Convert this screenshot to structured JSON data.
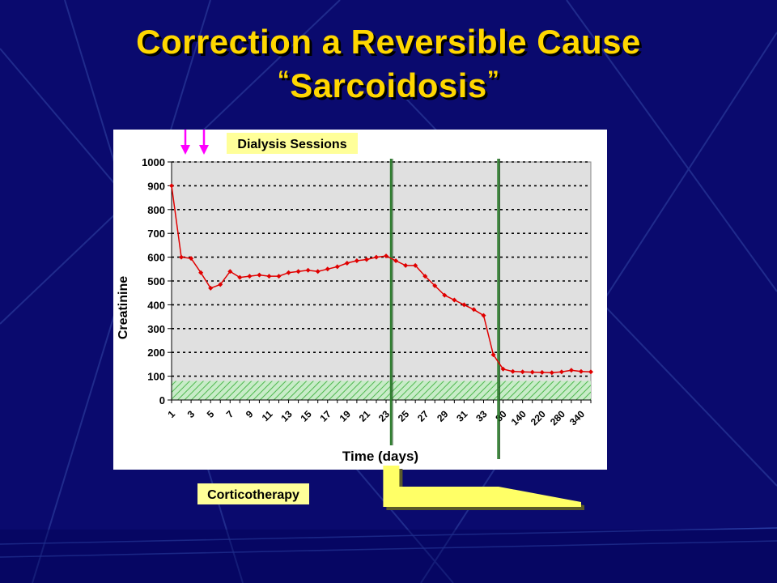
{
  "slide": {
    "title_line1": "Correction a Reversible Cause",
    "title_line2": "Sarcoidosis",
    "quote_open": "“",
    "quote_close": "”"
  },
  "colors": {
    "background": "#0a0a6e",
    "title": "#ffd700",
    "line": "#e00000",
    "plot_bg": "#e0e0e0",
    "label_bg": "#ffff99",
    "therapy": "#ffff66",
    "arrow": "#ff00ff",
    "marker_line": "#2e7d2e",
    "normal_band": "#66cc66"
  },
  "chart_data": {
    "type": "line",
    "xlabel": "Time (days)",
    "ylabel": "Creatinine",
    "ylim": [
      0,
      1000
    ],
    "yticks": [
      0,
      100,
      200,
      300,
      400,
      500,
      600,
      700,
      800,
      900,
      1000
    ],
    "grid": true,
    "x": [
      "1",
      "2",
      "3",
      "4",
      "5",
      "6",
      "7",
      "8",
      "9",
      "10",
      "11",
      "12",
      "13",
      "14",
      "15",
      "16",
      "17",
      "18",
      "19",
      "20",
      "21",
      "22",
      "23",
      "24",
      "25",
      "26",
      "27",
      "28",
      "29",
      "30",
      "31",
      "32",
      "33",
      "34",
      "80",
      "110",
      "140",
      "180",
      "220",
      "250",
      "280",
      "310",
      "340",
      "370"
    ],
    "x_tick_labels": [
      "1",
      "3",
      "5",
      "7",
      "9",
      "11",
      "13",
      "15",
      "17",
      "19",
      "21",
      "23",
      "25",
      "27",
      "29",
      "31",
      "33",
      "80",
      "140",
      "220",
      "280",
      "340"
    ],
    "series": [
      {
        "values": [
          900,
          600,
          595,
          535,
          470,
          485,
          540,
          515,
          520,
          525,
          520,
          520,
          535,
          540,
          545,
          540,
          550,
          560,
          575,
          585,
          590,
          600,
          605,
          585,
          565,
          565,
          520,
          480,
          440,
          420,
          400,
          380,
          355,
          190,
          130,
          120,
          118,
          117,
          116,
          115,
          118,
          125,
          120,
          118
        ]
      }
    ],
    "annotations": {
      "dialysis_label": "Dialysis Sessions",
      "therapy_label": "Corticotherapy",
      "dialysis_at_index": [
        1,
        3
      ],
      "markers_at_index": [
        22,
        33
      ],
      "normal_band_max": 80
    }
  }
}
